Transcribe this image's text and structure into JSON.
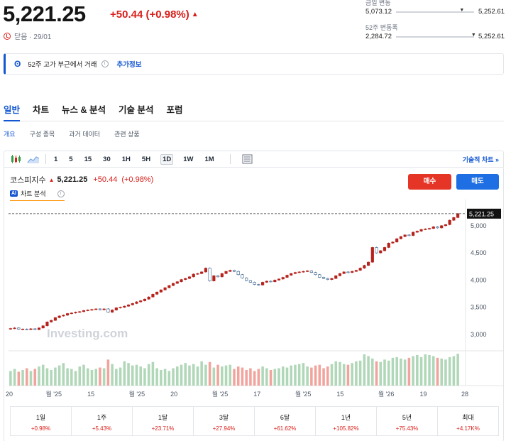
{
  "quote": {
    "last": "5,221.25",
    "change": "+50.44 (+0.98%)",
    "status": "닫음 · 29/01"
  },
  "ranges": [
    {
      "label": "금일 변동",
      "low": "5,073.12",
      "high": "5,252.61",
      "position": 0.84
    },
    {
      "label": "52주 변동폭",
      "low": "2,284.72",
      "high": "5,252.61",
      "position": 0.99
    }
  ],
  "banner": {
    "text": "52주 고가 부근에서 거래",
    "more": "추가정보"
  },
  "tabs": [
    "일반",
    "차트",
    "뉴스 & 분석",
    "기술 분석",
    "포럼"
  ],
  "subtabs": [
    "개요",
    "구성 종목",
    "과거 데이터",
    "관련 상품"
  ],
  "toolbar": {
    "intervals": [
      "1",
      "5",
      "15",
      "30",
      "1H",
      "5H",
      "1D",
      "1W",
      "1M"
    ],
    "active_interval": "1D",
    "tech_chart": "기술적 차트 »"
  },
  "legend": {
    "name": "코스피지수",
    "last": "5,221.25",
    "change": "+50.44",
    "pct": "(+0.98%)"
  },
  "analysis_label": "차트 분석",
  "buttons": {
    "buy": "매수",
    "sell": "매도"
  },
  "watermark": "Investing.com",
  "colors": {
    "up": "#d91e18",
    "down": "#1e6fe3",
    "accent": "#1256d1",
    "candle_up": "#b5231c",
    "candle_down": "#2b5a89"
  },
  "chart_data": {
    "type": "candlestick",
    "y_ticks": [
      "3,000",
      "3,500",
      "4,000",
      "4,500",
      "5,000"
    ],
    "y_tick_values": [
      3000,
      3500,
      4000,
      4500,
      5000
    ],
    "ylim": [
      2700,
      5350
    ],
    "x_ticks": [
      "20",
      "월 '25",
      "15",
      "월 '25",
      "20",
      "월 '25",
      "17",
      "월 '25",
      "15",
      "월 '26",
      "19",
      "28"
    ],
    "last_label": "5,221.25",
    "last_value": 5221.25,
    "closes": [
      3110,
      3120,
      3095,
      3100,
      3090,
      3105,
      3090,
      3120,
      3160,
      3230,
      3260,
      3310,
      3340,
      3355,
      3385,
      3395,
      3410,
      3420,
      3440,
      3450,
      3460,
      3470,
      3455,
      3470,
      3410,
      3450,
      3490,
      3500,
      3520,
      3545,
      3570,
      3600,
      3620,
      3650,
      3690,
      3740,
      3780,
      3820,
      3860,
      3900,
      3940,
      3970,
      4010,
      4030,
      4060,
      4110,
      4120,
      4150,
      4220,
      3985,
      4080,
      4060,
      4120,
      4160,
      4180,
      4160,
      4100,
      4040,
      3990,
      3960,
      3920,
      3910,
      3960,
      3980,
      3970,
      4000,
      4020,
      4050,
      4090,
      4120,
      4140,
      4150,
      4160,
      4170,
      4140,
      4100,
      4050,
      4030,
      4010,
      4030,
      4080,
      4120,
      4150,
      4140,
      4160,
      4180,
      4220,
      4270,
      4330,
      4600,
      4500,
      4540,
      4600,
      4680,
      4700,
      4760,
      4800,
      4830,
      4820,
      4880,
      4900,
      4930,
      4940,
      4950,
      4980,
      4960,
      5000,
      5020,
      5100,
      5150,
      5221
    ],
    "volumes": [
      0.42,
      0.48,
      0.4,
      0.45,
      0.5,
      0.42,
      0.48,
      0.55,
      0.6,
      0.5,
      0.45,
      0.52,
      0.58,
      0.65,
      0.5,
      0.48,
      0.42,
      0.55,
      0.6,
      0.5,
      0.45,
      0.48,
      0.52,
      0.5,
      0.75,
      0.62,
      0.48,
      0.52,
      0.7,
      0.65,
      0.58,
      0.6,
      0.55,
      0.5,
      0.62,
      0.68,
      0.5,
      0.45,
      0.48,
      0.42,
      0.5,
      0.55,
      0.6,
      0.65,
      0.58,
      0.62,
      0.55,
      0.7,
      0.6,
      0.68,
      0.52,
      0.6,
      0.55,
      0.58,
      0.6,
      0.48,
      0.55,
      0.52,
      0.45,
      0.5,
      0.42,
      0.48,
      0.55,
      0.5,
      0.45,
      0.48,
      0.5,
      0.55,
      0.52,
      0.58,
      0.6,
      0.62,
      0.65,
      0.55,
      0.52,
      0.58,
      0.6,
      0.5,
      0.55,
      0.62,
      0.7,
      0.68,
      0.62,
      0.6,
      0.65,
      0.7,
      0.72,
      0.9,
      0.85,
      0.78,
      0.7,
      0.68,
      0.75,
      0.72,
      0.8,
      0.82,
      0.78,
      0.75,
      0.8,
      0.85,
      0.88,
      0.82,
      0.9,
      0.88,
      0.85,
      0.8,
      0.78,
      0.75,
      0.82,
      0.85,
      0.92
    ],
    "periods": [
      {
        "label": "1일",
        "value": "+0.98%"
      },
      {
        "label": "1주",
        "value": "+5.43%"
      },
      {
        "label": "1달",
        "value": "+23.71%"
      },
      {
        "label": "3달",
        "value": "+27.94%"
      },
      {
        "label": "6달",
        "value": "+61.62%"
      },
      {
        "label": "1년",
        "value": "+105.82%"
      },
      {
        "label": "5년",
        "value": "+75.43%"
      },
      {
        "label": "최대",
        "value": "+4.17K%"
      }
    ]
  }
}
